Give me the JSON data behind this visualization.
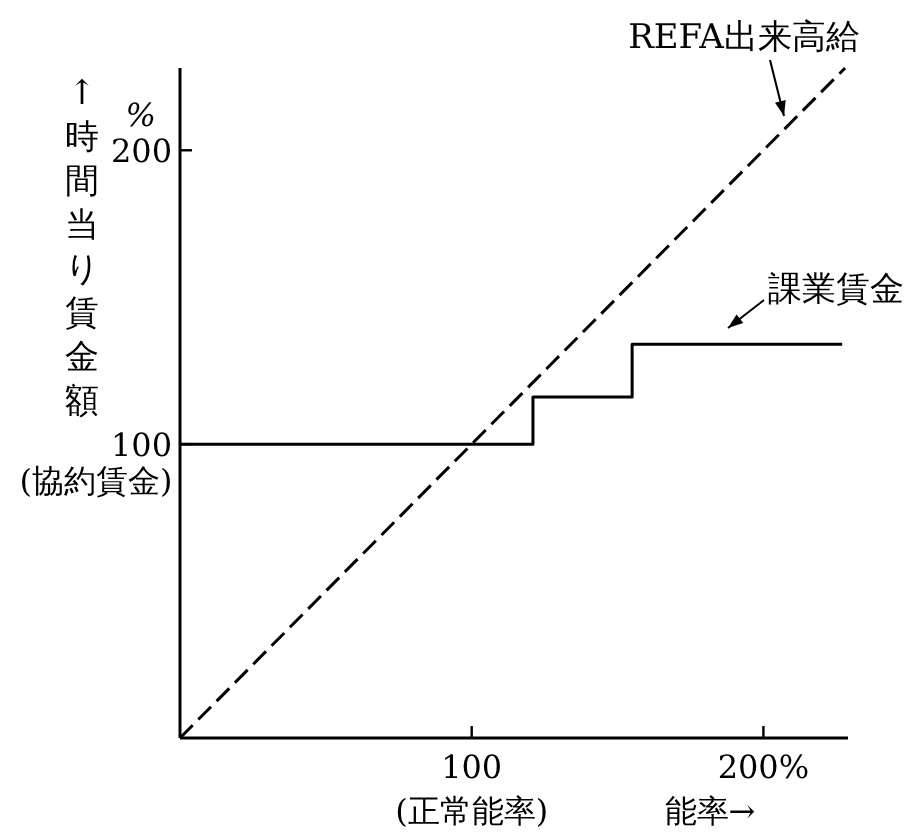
{
  "chart_data": {
    "type": "line",
    "xlabel": "能率→",
    "ylabel": "↑時間当り賃金額",
    "xlim": [
      0,
      229
    ],
    "ylim": [
      0,
      228
    ],
    "xticks": [
      100,
      {
        "value": 200,
        "label": "200%"
      }
    ],
    "yticks": [
      100,
      200
    ],
    "annotations": [
      "%",
      "(協約賃金)",
      "(正常能率)"
    ],
    "series": [
      {
        "name": "REFA出来高給",
        "color": "#000000",
        "line_style": "dashed",
        "x": [
          0,
          228
        ],
        "values": [
          0,
          228
        ]
      },
      {
        "name": "課業賃金",
        "color": "#000000",
        "line_style": "solid",
        "x": [
          0,
          121,
          121,
          155,
          155,
          227
        ],
        "values": [
          100,
          100,
          116,
          116,
          134,
          134
        ]
      }
    ]
  }
}
